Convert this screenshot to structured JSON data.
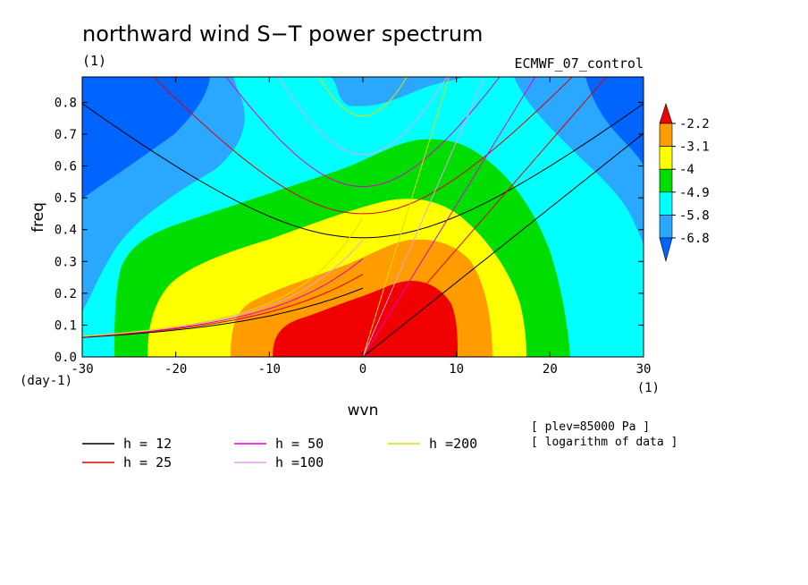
{
  "chart_data": {
    "type": "heatmap",
    "title": "northward wind S−T power spectrum",
    "subtitle_left": "(1)",
    "subtitle_right": "ECMWF_07_control",
    "xlabel": "wvn",
    "ylabel": "freq",
    "x_unit": "(1)",
    "y_unit": "(day-1)",
    "xlim": [
      -30,
      30
    ],
    "ylim": [
      0,
      0.88
    ],
    "x_ticks": [
      "-30",
      "-20",
      "-10",
      "0",
      "10",
      "20",
      "30"
    ],
    "x_tick_values": [
      -30,
      -20,
      -10,
      0,
      10,
      20,
      30
    ],
    "y_ticks": [
      "0.0",
      "0.1",
      "0.2",
      "0.3",
      "0.4",
      "0.5",
      "0.6",
      "0.7",
      "0.8"
    ],
    "y_tick_values": [
      0,
      0.1,
      0.2,
      0.3,
      0.4,
      0.5,
      0.6,
      0.7,
      0.8
    ],
    "colorbar": {
      "labels": [
        "-2.2",
        "-3.1",
        "-4",
        "-4.9",
        "-5.8",
        "-6.8"
      ],
      "colors": [
        "#f00000",
        "#ff9c00",
        "#ffff00",
        "#00dd00",
        "#00ffff",
        "#2aa8ff",
        "#0064ff"
      ]
    },
    "fill_colors": {
      "lt_m6_8": "#0064ff",
      "m6_8_to_m5_8": "#2aa8ff",
      "m5_8_to_m4_9": "#00ffff",
      "m4_9_to_m4": "#00dd00",
      "m4_to_m3_1": "#ffff00",
      "m3_1_to_m2_2": "#ff9c00",
      "gt_m2_2": "#f00000"
    },
    "dispersion_curves": [
      {
        "label": "h = 12",
        "h": 12,
        "color": "#000000"
      },
      {
        "label": "h = 25",
        "h": 25,
        "color": "#e00000"
      },
      {
        "label": "h = 50",
        "h": 50,
        "color": "#e000c8"
      },
      {
        "label": "h =100",
        "h": 100,
        "color": "#e8a0e8"
      },
      {
        "label": "h =200",
        "h": 200,
        "color": "#e8d800"
      }
    ],
    "notes": [
      "[ plev=85000 Pa ]",
      "[ logarithm of data ]"
    ]
  }
}
